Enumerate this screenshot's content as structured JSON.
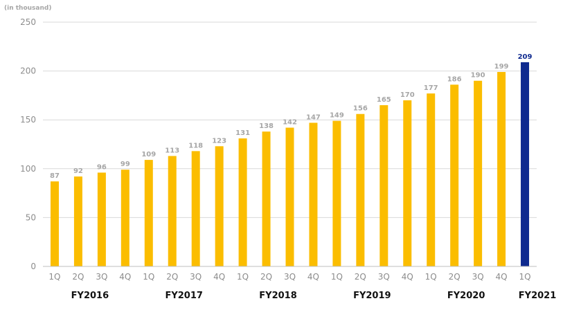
{
  "chart_data": {
    "type": "bar",
    "unit_label": "(in thousand)",
    "ylim": [
      0,
      250
    ],
    "yticks": [
      0,
      50,
      100,
      150,
      200,
      250
    ],
    "grid": true,
    "categories": [
      "1Q",
      "2Q",
      "3Q",
      "4Q",
      "1Q",
      "2Q",
      "3Q",
      "4Q",
      "1Q",
      "2Q",
      "3Q",
      "4Q",
      "1Q",
      "2Q",
      "3Q",
      "4Q",
      "1Q",
      "2Q",
      "3Q",
      "4Q",
      "1Q"
    ],
    "groups": [
      {
        "label": "FY2016",
        "start": 0,
        "end": 3
      },
      {
        "label": "FY2017",
        "start": 4,
        "end": 7
      },
      {
        "label": "FY2018",
        "start": 8,
        "end": 11
      },
      {
        "label": "FY2019",
        "start": 12,
        "end": 15
      },
      {
        "label": "FY2020",
        "start": 16,
        "end": 19
      },
      {
        "label": "FY2021",
        "start": 20,
        "end": 20
      }
    ],
    "values": [
      87,
      92,
      96,
      99,
      109,
      113,
      118,
      123,
      131,
      138,
      142,
      147,
      149,
      156,
      165,
      170,
      177,
      186,
      190,
      199,
      209
    ],
    "highlight_index": 20,
    "colors": {
      "bar": "#fbbd00",
      "highlight_bar": "#0f2a8f",
      "highlight_label": "#0f2a8f",
      "label": "#a6a6a6",
      "grid": "#d9d9d9",
      "axis": "#bfbfbf"
    }
  }
}
